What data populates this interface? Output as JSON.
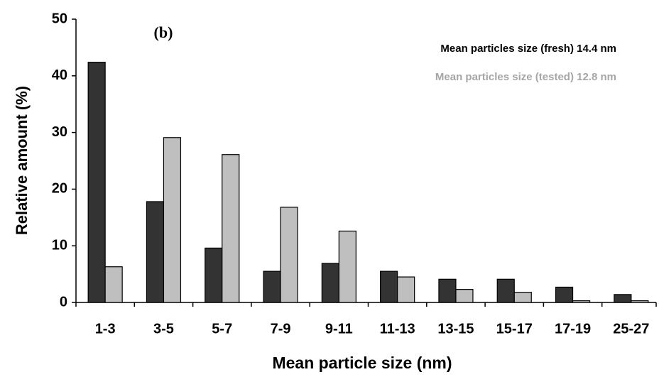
{
  "chart_data": {
    "type": "bar",
    "xlabel": "Mean particle size (nm)",
    "ylabel": "Relative amount (%)",
    "annotation": "(b)",
    "categories": [
      "1-3",
      "3-5",
      "5-7",
      "7-9",
      "9-11",
      "11-13",
      "13-15",
      "15-17",
      "17-19",
      "25-27"
    ],
    "series": [
      {
        "name": "Mean particles size (fresh) 14.4 nm",
        "color": "#333333",
        "values": [
          42.4,
          17.8,
          9.6,
          5.5,
          6.9,
          5.5,
          4.1,
          4.1,
          2.7,
          1.4
        ]
      },
      {
        "name": "Mean particles size (tested) 12.8 nm",
        "color": "#bfbfbf",
        "values": [
          6.3,
          29.1,
          26.1,
          16.8,
          12.6,
          4.5,
          2.3,
          1.8,
          0.3,
          0.3
        ]
      }
    ],
    "ylim": [
      0,
      50
    ],
    "yticks": [
      0,
      10,
      20,
      30,
      40,
      50
    ],
    "grid": false
  }
}
